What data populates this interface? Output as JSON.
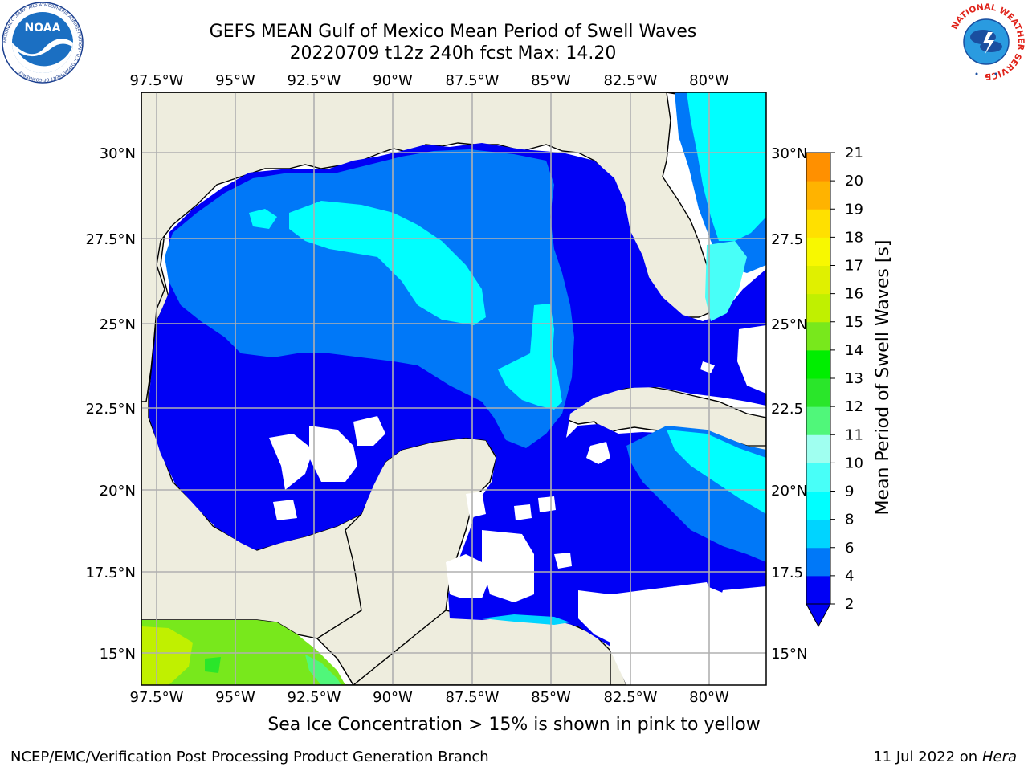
{
  "header": {
    "title_line1": "GEFS MEAN Gulf of Mexico Mean Period of Swell Waves",
    "title_line2": "20220709 t12z 240h fcst   Max: 14.20"
  },
  "logos": {
    "left": "NOAA",
    "left_ring_text": "NATIONAL OCEANIC AND ATMOSPHERIC ADMINISTRATION · U.S. DEPARTMENT OF COMMERCE",
    "right_ring_text": "NATIONAL WEATHER SERVICE"
  },
  "map": {
    "lon_labels": [
      "97.5°W",
      "95°W",
      "92.5°W",
      "90°W",
      "87.5°W",
      "85°W",
      "82.5°W",
      "80°W"
    ],
    "lat_labels_left": [
      "30°N",
      "27.5°N",
      "25°N",
      "22.5°N",
      "20°N",
      "17.5°N",
      "15°N"
    ],
    "lat_labels_right": [
      "30°N",
      "27.5",
      "25°N",
      "22.5",
      "20°N",
      "17.5",
      "15°N"
    ],
    "colors": {
      "land": "#eeedde",
      "missing": "#ffffff",
      "grid": "#b0b0b0"
    }
  },
  "colorbar": {
    "label": "Mean Period of Swell Waves [s]",
    "ticks": [
      "2",
      "4",
      "6",
      "8",
      "9",
      "10",
      "11",
      "12",
      "13",
      "14",
      "15",
      "16",
      "17",
      "18",
      "19",
      "20",
      "21"
    ],
    "colors": [
      "#0000f5",
      "#0078f8",
      "#00d4ff",
      "#00ffff",
      "#48fff8",
      "#a0fff0",
      "#50f77a",
      "#2ae62a",
      "#00ee00",
      "#78e81c",
      "#c0f000",
      "#e0f000",
      "#f8f800",
      "#ffe000",
      "#ffb300",
      "#ff9000",
      "#ff6800",
      "#ff4000",
      "#ff0000"
    ]
  },
  "notes": {
    "ice": "Sea Ice Concentration > 15% is shown in pink to yellow"
  },
  "footer": {
    "left": "NCEP/EMC/Verification Post Processing Product Generation Branch",
    "right_prefix": "11 Jul 2022 on ",
    "right_host": "Hera"
  }
}
